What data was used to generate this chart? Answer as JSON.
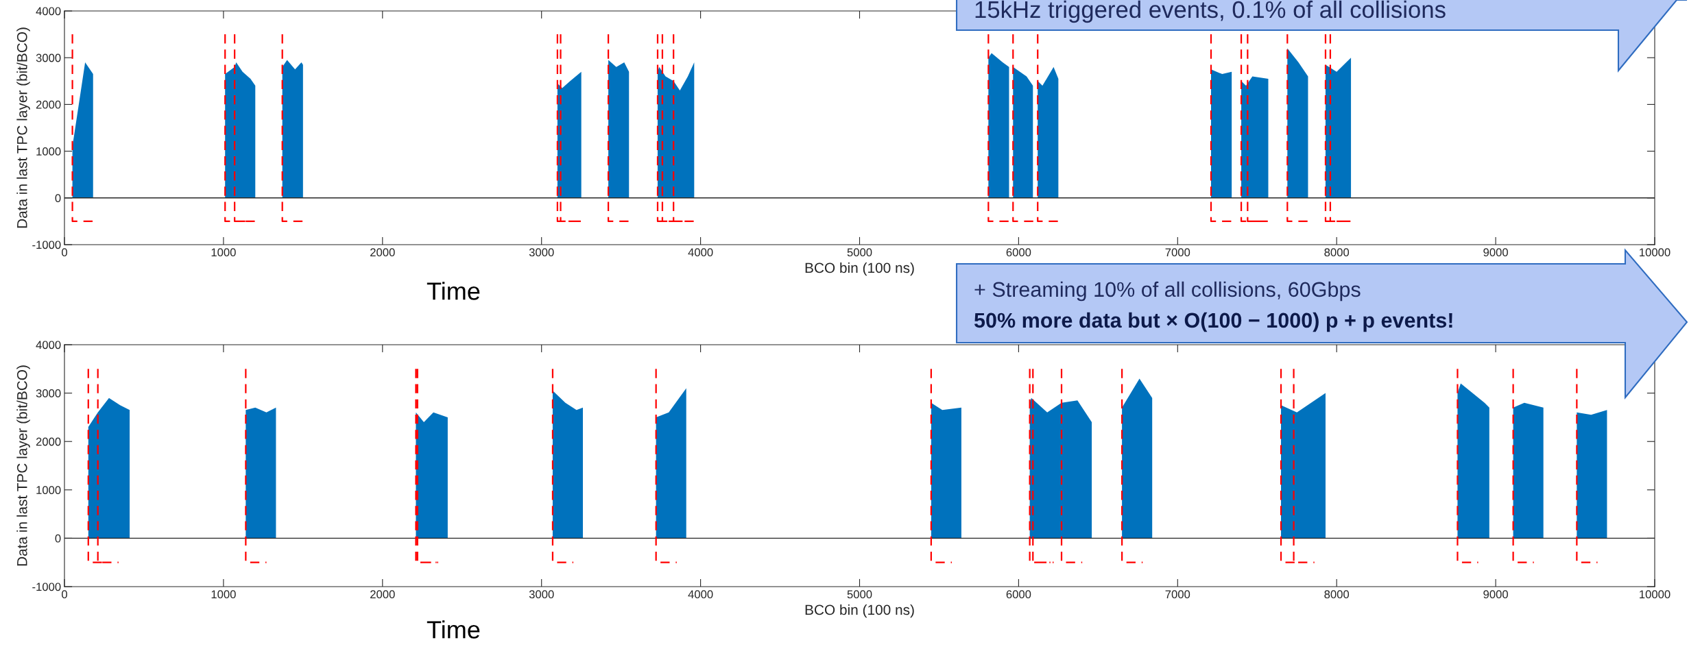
{
  "chart_data": [
    {
      "type": "area",
      "xlabel": "BCO bin (100 ns)",
      "ylabel": "Data in last TPC layer (bit/BCO)",
      "xlim": [
        0,
        10000
      ],
      "ylim": [
        -1000,
        4000
      ],
      "xticks": [
        0,
        1000,
        2000,
        3000,
        4000,
        5000,
        6000,
        7000,
        8000,
        9000,
        10000
      ],
      "yticks": [
        -1000,
        0,
        1000,
        2000,
        3000,
        4000
      ],
      "grid": false,
      "annotations": [
        "15kHz triggered events, 0.1% of all collisions",
        "Time"
      ],
      "ref_lines": [
        {
          "axis": "y",
          "value": 0,
          "color": "#262626"
        }
      ],
      "series": [
        {
          "type": "area",
          "color": "#0072bd",
          "x": [
            50,
            50,
            90,
            130,
            150,
            180,
            180,
            1010,
            1010,
            1070,
            1080,
            1120,
            1170,
            1200,
            1200,
            1370,
            1370,
            1400,
            1450,
            1490,
            1500,
            1500,
            3100,
            3100,
            3130,
            3180,
            3250,
            3250,
            3420,
            3420,
            3470,
            3520,
            3550,
            3550,
            3730,
            3730,
            3740,
            3780,
            3830,
            3870,
            3920,
            3960,
            3960,
            5810,
            5810,
            5830,
            5900,
            5940,
            5940,
            5965,
            5965,
            6050,
            6090,
            6090,
            6120,
            6120,
            6150,
            6220,
            6250,
            6250,
            7210,
            7210,
            7280,
            7340,
            7340,
            7400,
            7400,
            7430,
            7470,
            7570,
            7570,
            7690,
            7690,
            7760,
            7820,
            7820,
            7930,
            7930,
            8000,
            8060,
            8090,
            8090
          ],
          "values": [
            0,
            1100,
            2000,
            2900,
            2800,
            2650,
            0,
            0,
            2650,
            2800,
            2900,
            2700,
            2550,
            2400,
            0,
            0,
            2800,
            2950,
            2750,
            2900,
            2850,
            0,
            0,
            2450,
            2350,
            2500,
            2700,
            0,
            0,
            2950,
            2800,
            2900,
            2700,
            0,
            0,
            2700,
            2800,
            2600,
            2500,
            2300,
            2600,
            2900,
            0,
            0,
            3000,
            3100,
            2900,
            2800,
            0,
            0,
            2800,
            2600,
            2400,
            0,
            0,
            2500,
            2400,
            2800,
            2550,
            0,
            0,
            2750,
            2650,
            2700,
            0,
            0,
            2500,
            2400,
            2600,
            2550,
            0,
            0,
            3200,
            2900,
            2600,
            0,
            0,
            2850,
            2700,
            2900,
            3000,
            0
          ]
        },
        {
          "type": "line",
          "color": "#ff0000",
          "line_style": "dashed",
          "x": [
            50,
            50,
            180,
            null,
            1010,
            1010,
            1140,
            null,
            1070,
            1070,
            1200,
            null,
            1370,
            1370,
            1500,
            null,
            3100,
            3100,
            3230,
            null,
            3120,
            3120,
            3250,
            null,
            3420,
            3420,
            3550,
            null,
            3730,
            3730,
            3860,
            null,
            3760,
            3760,
            3890,
            null,
            3830,
            3830,
            3960,
            null,
            5810,
            5810,
            5940,
            null,
            5965,
            5965,
            6095,
            null,
            6120,
            6120,
            6250,
            null,
            7210,
            7210,
            7340,
            null,
            7400,
            7400,
            7530,
            null,
            7440,
            7440,
            7570,
            null,
            7690,
            7690,
            7820,
            null,
            7930,
            7930,
            8060,
            null,
            7960,
            7960,
            8090
          ],
          "values": [
            3500,
            -500,
            -500,
            null,
            3500,
            -500,
            -500,
            null,
            3500,
            -500,
            -500,
            null,
            3500,
            -500,
            -500,
            null,
            3500,
            -500,
            -500,
            null,
            3500,
            -500,
            -500,
            null,
            3500,
            -500,
            -500,
            null,
            3500,
            -500,
            -500,
            null,
            3500,
            -500,
            -500,
            null,
            3500,
            -500,
            -500,
            null,
            3500,
            -500,
            -500,
            null,
            3500,
            -500,
            -500,
            null,
            3500,
            -500,
            -500,
            null,
            3500,
            -500,
            -500,
            null,
            3500,
            -500,
            -500,
            null,
            3500,
            -500,
            -500,
            null,
            3500,
            -500,
            -500,
            null,
            3500,
            -500,
            -500,
            null,
            3500,
            -500,
            -500
          ]
        }
      ]
    },
    {
      "type": "area",
      "xlabel": "BCO bin (100 ns)",
      "ylabel": "Data in last TPC layer (bit/BCO)",
      "xlim": [
        0,
        10000
      ],
      "ylim": [
        -1000,
        4000
      ],
      "xticks": [
        0,
        1000,
        2000,
        3000,
        4000,
        5000,
        6000,
        7000,
        8000,
        9000,
        10000
      ],
      "yticks": [
        -1000,
        0,
        1000,
        2000,
        3000,
        4000
      ],
      "grid": false,
      "annotations": [
        "+ Streaming 10% of all collisions, 60Gbps",
        "50% more data but × O(100 − 1000) p + p events!",
        "Time"
      ],
      "ref_lines": [
        {
          "axis": "y",
          "value": 0,
          "color": "#262626"
        }
      ],
      "series": [
        {
          "type": "area",
          "color": "#0072bd",
          "x": [
            150,
            150,
            210,
            280,
            350,
            410,
            410,
            1140,
            1140,
            1200,
            1270,
            1330,
            1330,
            2210,
            2210,
            2260,
            2320,
            2410,
            2410,
            3070,
            3070,
            3150,
            3220,
            3260,
            3260,
            3720,
            3720,
            3800,
            3910,
            3910,
            5450,
            5450,
            5520,
            5640,
            5640,
            6070,
            6070,
            6080,
            6180,
            6270,
            6370,
            6460,
            6460,
            6650,
            6650,
            6760,
            6840,
            6840,
            7650,
            7650,
            7750,
            7930,
            7930,
            8760,
            8760,
            8780,
            8930,
            8960,
            8960,
            9110,
            9110,
            9180,
            9300,
            9300,
            9510,
            9510,
            9600,
            9700,
            9700
          ],
          "values": [
            0,
            2300,
            2600,
            2900,
            2750,
            2650,
            0,
            0,
            2650,
            2700,
            2600,
            2700,
            0,
            0,
            2600,
            2400,
            2600,
            2500,
            0,
            0,
            3050,
            2800,
            2650,
            2700,
            0,
            0,
            2500,
            2600,
            3100,
            0,
            0,
            2800,
            2650,
            2700,
            0,
            0,
            2800,
            2900,
            2600,
            2800,
            2850,
            2400,
            0,
            0,
            2700,
            3300,
            2900,
            0,
            0,
            2750,
            2600,
            3000,
            0,
            0,
            3000,
            3200,
            2800,
            2700,
            0,
            0,
            2700,
            2800,
            2700,
            0,
            0,
            2600,
            2550,
            2650,
            0
          ]
        },
        {
          "type": "line",
          "color": "#ff0000",
          "line_style": "dashed",
          "x": [
            150,
            150,
            280,
            null,
            210,
            210,
            340,
            null,
            1140,
            1140,
            1270,
            null,
            2210,
            2210,
            2340,
            null,
            2220,
            2220,
            2350,
            null,
            3070,
            3070,
            3200,
            null,
            3720,
            3720,
            3850,
            null,
            5450,
            5450,
            5580,
            null,
            6070,
            6070,
            6200,
            null,
            6090,
            6090,
            6220,
            null,
            6270,
            6270,
            6400,
            null,
            6650,
            6650,
            6780,
            null,
            7650,
            7650,
            7780,
            null,
            7730,
            7730,
            7860,
            null,
            8760,
            8760,
            8890,
            null,
            9110,
            9110,
            9240,
            null,
            9510,
            9510,
            9640
          ],
          "values": [
            3500,
            -500,
            -500,
            null,
            3500,
            -500,
            -500,
            null,
            3500,
            -500,
            -500,
            null,
            3500,
            -500,
            -500,
            null,
            3500,
            -500,
            -500,
            null,
            3500,
            -500,
            -500,
            null,
            3500,
            -500,
            -500,
            null,
            3500,
            -500,
            -500,
            null,
            3500,
            -500,
            -500,
            null,
            3500,
            -500,
            -500,
            null,
            3500,
            -500,
            -500,
            null,
            3500,
            -500,
            -500,
            null,
            3500,
            -500,
            -500,
            null,
            3500,
            -500,
            -500,
            null,
            3500,
            -500,
            -500,
            null,
            3500,
            -500,
            -500,
            null,
            3500,
            -500,
            -500
          ]
        }
      ]
    }
  ]
}
